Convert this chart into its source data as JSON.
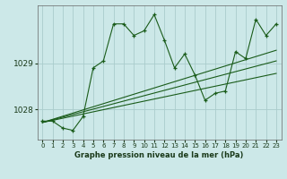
{
  "bg_color": "#cce8e8",
  "grid_color": "#aacccc",
  "line_color": "#1a5c1a",
  "title": "Graphe pression niveau de la mer (hPa)",
  "xlim": [
    -0.5,
    23.5
  ],
  "ylim": [
    1027.35,
    1030.25
  ],
  "yticks": [
    1028,
    1029
  ],
  "xticks": [
    0,
    1,
    2,
    3,
    4,
    5,
    6,
    7,
    8,
    9,
    10,
    11,
    12,
    13,
    14,
    15,
    16,
    17,
    18,
    19,
    20,
    21,
    22,
    23
  ],
  "series1_x": [
    0,
    1,
    2,
    3,
    4,
    5,
    6,
    7,
    8,
    9,
    10,
    11,
    12,
    13,
    14,
    15,
    16,
    17,
    18,
    19,
    20,
    21,
    22,
    23
  ],
  "series1_y": [
    1027.75,
    1027.75,
    1027.6,
    1027.55,
    1027.85,
    1028.9,
    1029.05,
    1029.85,
    1029.85,
    1029.6,
    1029.7,
    1030.05,
    1029.5,
    1028.9,
    1029.2,
    1028.75,
    1028.2,
    1028.35,
    1028.4,
    1029.25,
    1029.1,
    1029.95,
    1029.6,
    1029.85
  ],
  "line1_x": [
    0,
    23
  ],
  "line1_y": [
    1027.72,
    1028.78
  ],
  "line2_x": [
    0,
    23
  ],
  "line2_y": [
    1027.72,
    1029.05
  ],
  "line3_x": [
    0,
    23
  ],
  "line3_y": [
    1027.72,
    1029.28
  ]
}
